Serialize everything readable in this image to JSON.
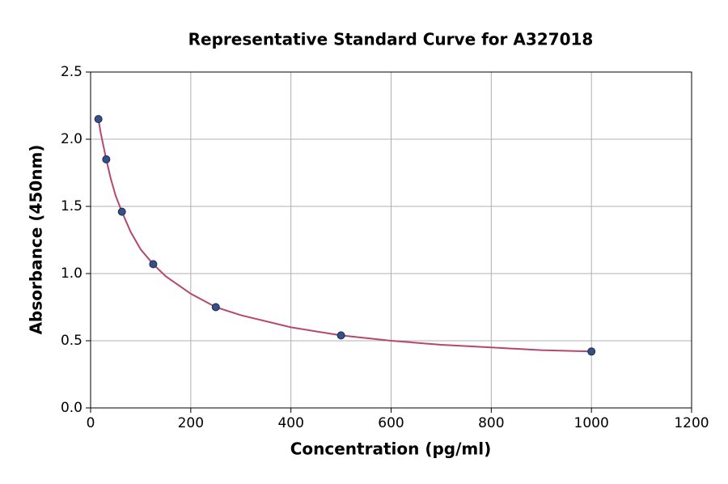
{
  "chart_data": {
    "type": "scatter",
    "title": "Representative Standard Curve for A327018",
    "x_label": "Concentration (pg/ml)",
    "y_label": "Absorbance (450nm)",
    "xlim": [
      0,
      1200
    ],
    "xticks": [
      0,
      200,
      400,
      600,
      800,
      1000,
      1200
    ],
    "ylim": [
      0,
      2.5
    ],
    "yticks": [
      {
        "value": 0,
        "label": "0.0"
      },
      {
        "value": 0.5,
        "label": "0.5"
      },
      {
        "value": 1,
        "label": "1.0"
      },
      {
        "value": 1.5,
        "label": "1.5"
      },
      {
        "value": 2,
        "label": "2.0"
      },
      {
        "value": 2.5,
        "label": "2.5"
      }
    ],
    "grid": true,
    "series": [
      {
        "type": "line",
        "color": "#b5476b",
        "x": [
          15.6,
          20,
          31.25,
          40,
          50,
          62.5,
          80,
          100,
          125,
          150,
          200,
          250,
          300,
          400,
          500,
          600,
          700,
          800,
          900,
          1000
        ],
        "values": [
          2.15,
          2.05,
          1.85,
          1.71,
          1.58,
          1.46,
          1.31,
          1.18,
          1.07,
          0.98,
          0.85,
          0.75,
          0.69,
          0.6,
          0.54,
          0.5,
          0.47,
          0.45,
          0.43,
          0.42
        ]
      },
      {
        "type": "scatter",
        "color": "#34508a",
        "x": [
          15.6,
          31.25,
          62.5,
          125,
          250,
          500,
          1000
        ],
        "values": [
          2.15,
          1.85,
          1.46,
          1.07,
          0.75,
          0.54,
          0.42
        ]
      }
    ]
  }
}
